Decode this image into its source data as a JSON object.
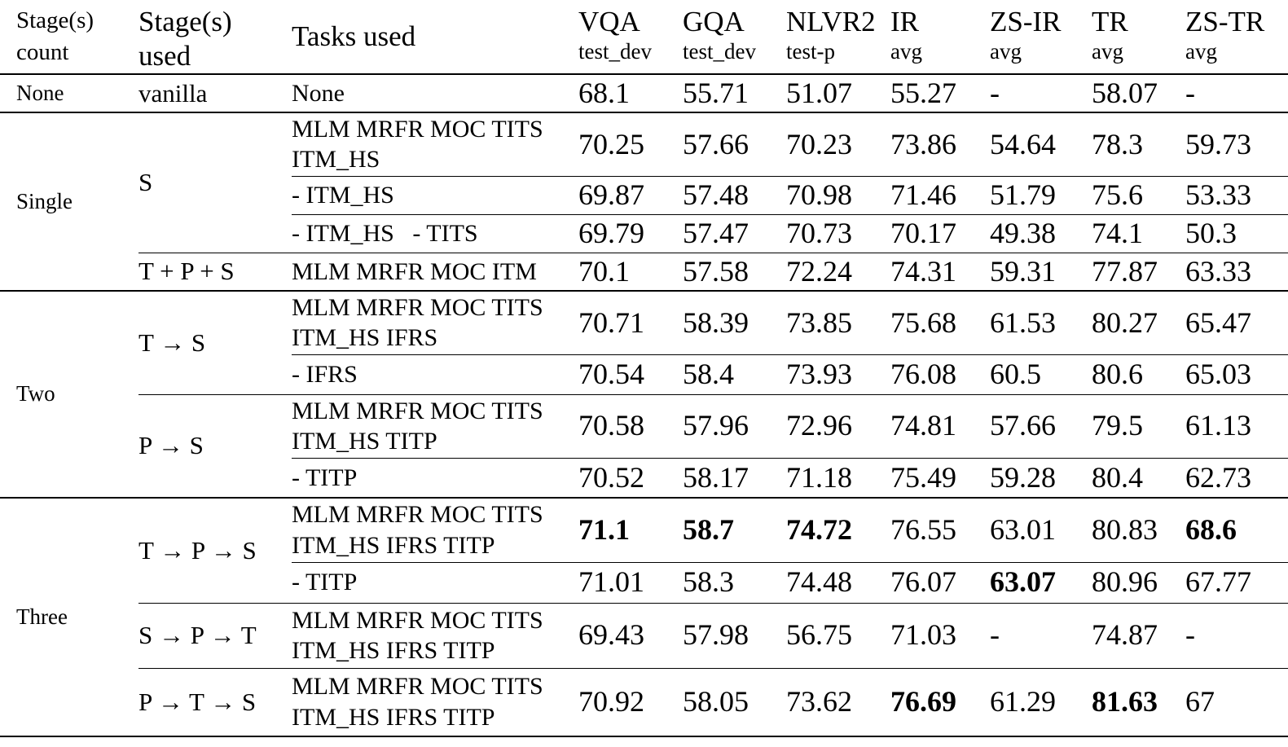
{
  "table": {
    "columns": [
      {
        "label": "Stage(s)",
        "sublabel": "count"
      },
      {
        "label": "Stage(s)",
        "sublabel": "used"
      },
      {
        "label": "Tasks used",
        "sublabel": ""
      },
      {
        "label": "VQA",
        "sublabel": "test_dev"
      },
      {
        "label": "GQA",
        "sublabel": "test_dev"
      },
      {
        "label": "NLVR2",
        "sublabel": "test-p"
      },
      {
        "label": "IR",
        "sublabel": "avg"
      },
      {
        "label": "ZS-IR",
        "sublabel": "avg"
      },
      {
        "label": "TR",
        "sublabel": "avg"
      },
      {
        "label": "ZS-TR",
        "sublabel": "avg"
      }
    ],
    "rows": [
      {
        "count": "None",
        "stage": "vanilla",
        "tasks": "None",
        "vqa": "68.1",
        "gqa": "55.71",
        "nlvr2": "51.07",
        "ir": "55.27",
        "zs_ir": "-",
        "tr": "58.07",
        "zs_tr": "-"
      },
      {
        "count": "Single",
        "stage": "S",
        "tasks": "MLM MRFR MOC TITS\nITM_HS",
        "vqa": "70.25",
        "gqa": "57.66",
        "nlvr2": "70.23",
        "ir": "73.86",
        "zs_ir": "54.64",
        "tr": "78.3",
        "zs_tr": "59.73"
      },
      {
        "tasks": "- ITM_HS",
        "vqa": "69.87",
        "gqa": "57.48",
        "nlvr2": "70.98",
        "ir": "71.46",
        "zs_ir": "51.79",
        "tr": "75.6",
        "zs_tr": "53.33"
      },
      {
        "tasks": "- ITM_HS   - TITS",
        "vqa": "69.79",
        "gqa": "57.47",
        "nlvr2": "70.73",
        "ir": "70.17",
        "zs_ir": "49.38",
        "tr": "74.1",
        "zs_tr": "50.3"
      },
      {
        "stage": "T + P + S",
        "tasks": "MLM MRFR MOC ITM",
        "vqa": "70.1",
        "gqa": "57.58",
        "nlvr2": "72.24",
        "ir": "74.31",
        "zs_ir": "59.31",
        "tr": "77.87",
        "zs_tr": "63.33"
      },
      {
        "count": "Two",
        "stage": "T → S",
        "tasks": "MLM MRFR MOC TITS\nITM_HS IFRS",
        "vqa": "70.71",
        "gqa": "58.39",
        "nlvr2": "73.85",
        "ir": "75.68",
        "zs_ir": "61.53",
        "tr": "80.27",
        "zs_tr": "65.47"
      },
      {
        "tasks": "- IFRS",
        "vqa": "70.54",
        "gqa": "58.4",
        "nlvr2": "73.93",
        "ir": "76.08",
        "zs_ir": "60.5",
        "tr": "80.6",
        "zs_tr": "65.03"
      },
      {
        "stage": "P → S",
        "tasks": "MLM MRFR MOC TITS\nITM_HS TITP",
        "vqa": "70.58",
        "gqa": "57.96",
        "nlvr2": "72.96",
        "ir": "74.81",
        "zs_ir": "57.66",
        "tr": "79.5",
        "zs_tr": "61.13"
      },
      {
        "tasks": "- TITP",
        "vqa": "70.52",
        "gqa": "58.17",
        "nlvr2": "71.18",
        "ir": "75.49",
        "zs_ir": "59.28",
        "tr": "80.4",
        "zs_tr": "62.73"
      },
      {
        "count": "Three",
        "stage": "T → P → S",
        "tasks": "MLM MRFR MOC TITS\nITM_HS IFRS TITP",
        "vqa": "71.1",
        "gqa": "58.7",
        "nlvr2": "74.72",
        "ir": "76.55",
        "zs_ir": "63.01",
        "tr": "80.83",
        "zs_tr": "68.6"
      },
      {
        "tasks": "- TITP",
        "vqa": "71.01",
        "gqa": "58.3",
        "nlvr2": "74.48",
        "ir": "76.07",
        "zs_ir": "63.07",
        "tr": "80.96",
        "zs_tr": "67.77"
      },
      {
        "stage": "S → P → T",
        "tasks": "MLM MRFR MOC TITS\nITM_HS IFRS TITP",
        "vqa": "69.43",
        "gqa": "57.98",
        "nlvr2": "56.75",
        "ir": "71.03",
        "zs_ir": "-",
        "tr": "74.87",
        "zs_tr": "-"
      },
      {
        "stage": "P → T → S",
        "tasks": "MLM MRFR MOC TITS\nITM_HS IFRS TITP",
        "vqa": "70.92",
        "gqa": "58.05",
        "nlvr2": "73.62",
        "ir": "76.69",
        "zs_ir": "61.29",
        "tr": "81.63",
        "zs_tr": "67"
      }
    ]
  }
}
